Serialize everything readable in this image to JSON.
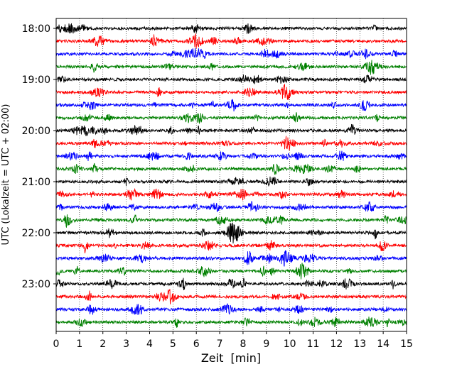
{
  "chart_data": {
    "type": "line",
    "chart_kind": "helicorder (seismogram drum plot)",
    "xlabel": "Zeit  [min]",
    "ylabel": "UTC (Lokalzeit = UTC + 02:00)",
    "xlim": [
      0,
      15
    ],
    "x_ticks": [
      "0",
      "1",
      "2",
      "3",
      "4",
      "5",
      "6",
      "7",
      "8",
      "9",
      "10",
      "11",
      "12",
      "13",
      "14",
      "15"
    ],
    "y_tick_labels": [
      "18:00",
      "19:00",
      "20:00",
      "21:00",
      "22:00",
      "23:00"
    ],
    "vertical_grid": "dotted, at every minute",
    "minutes_per_trace": 15,
    "trace_colors_cycle": [
      "#000000",
      "#ff0000",
      "#0000ff",
      "#008000"
    ],
    "traces": [
      {
        "start": "18:00"
      },
      {
        "start": "18:15"
      },
      {
        "start": "18:30"
      },
      {
        "start": "18:45"
      },
      {
        "start": "19:00"
      },
      {
        "start": "19:15"
      },
      {
        "start": "19:30"
      },
      {
        "start": "19:45"
      },
      {
        "start": "20:00"
      },
      {
        "start": "20:15"
      },
      {
        "start": "20:30"
      },
      {
        "start": "20:45"
      },
      {
        "start": "21:00"
      },
      {
        "start": "21:15"
      },
      {
        "start": "21:30"
      },
      {
        "start": "21:45"
      },
      {
        "start": "22:00"
      },
      {
        "start": "22:15"
      },
      {
        "start": "22:30"
      },
      {
        "start": "22:45"
      },
      {
        "start": "23:00"
      },
      {
        "start": "23:15"
      },
      {
        "start": "23:30"
      },
      {
        "start": "23:45"
      }
    ]
  }
}
